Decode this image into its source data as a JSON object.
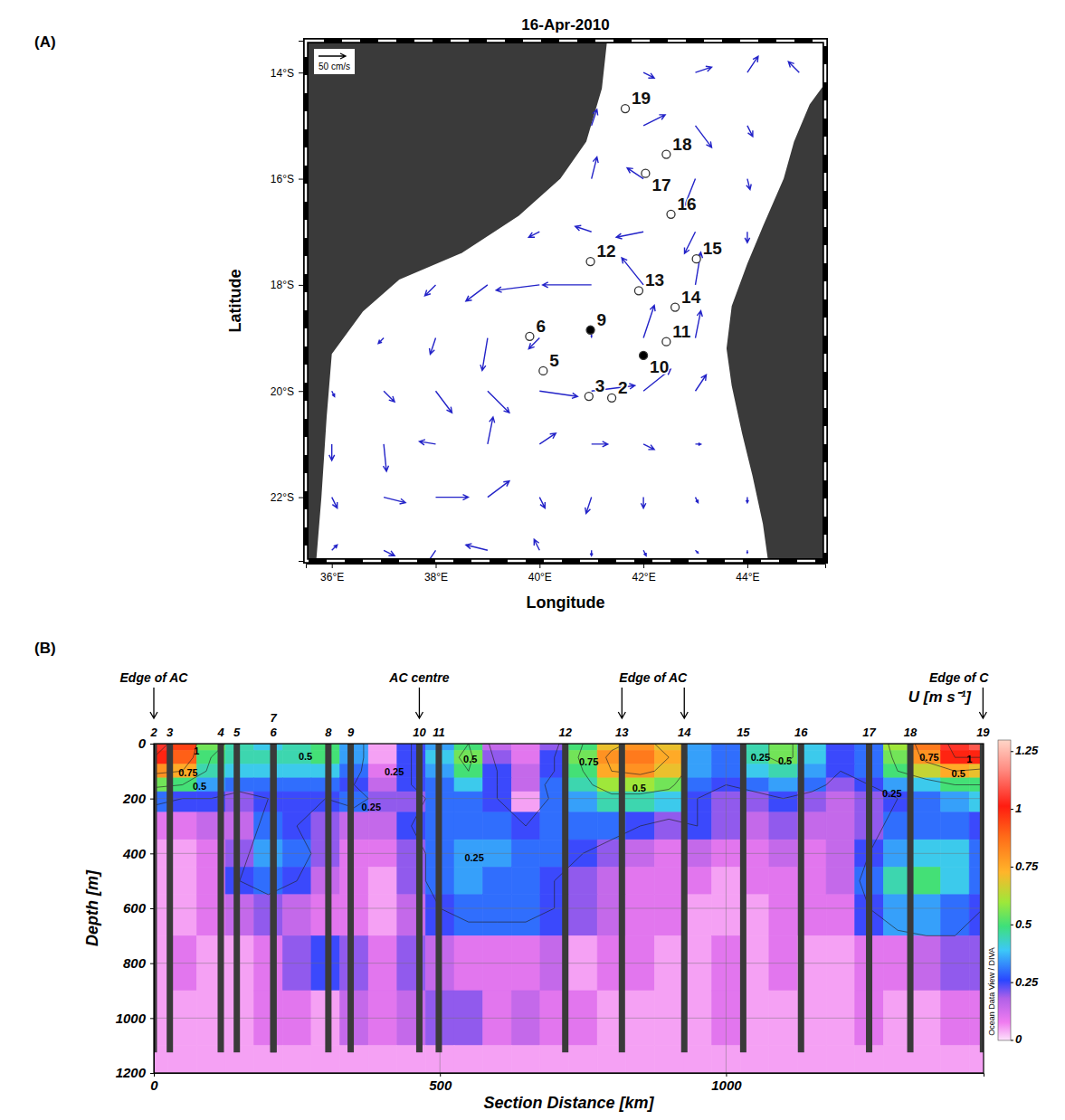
{
  "chart_data": [
    {
      "type": "vector_map",
      "panel_label": "(A)",
      "title": "16-Apr-2010",
      "x_label": "Longitude",
      "y_label": "Latitude",
      "xlim": [
        35.5,
        45.5
      ],
      "ylim": [
        -23.2,
        -13.4
      ],
      "xticks": [
        {
          "value": 36,
          "label": "36°E"
        },
        {
          "value": 38,
          "label": "38°E"
        },
        {
          "value": 40,
          "label": "40°E"
        },
        {
          "value": 42,
          "label": "42°E"
        },
        {
          "value": 44,
          "label": "44°E"
        }
      ],
      "yticks": [
        {
          "value": -14,
          "label": "14°S"
        },
        {
          "value": -16,
          "label": "16°S"
        },
        {
          "value": -18,
          "label": "18°S"
        },
        {
          "value": -20,
          "label": "20°S"
        },
        {
          "value": -22,
          "label": "22°S"
        }
      ],
      "land": [
        [
          [
            35.5,
            -13.4
          ],
          [
            41.3,
            -13.4
          ],
          [
            41.2,
            -14.3
          ],
          [
            40.9,
            -15.3
          ],
          [
            40.4,
            -16.0
          ],
          [
            39.6,
            -16.7
          ],
          [
            38.5,
            -17.4
          ],
          [
            37.3,
            -17.9
          ],
          [
            36.6,
            -18.5
          ],
          [
            36.0,
            -19.3
          ],
          [
            35.9,
            -20.5
          ],
          [
            35.8,
            -22.0
          ],
          [
            35.7,
            -23.2
          ],
          [
            35.5,
            -23.2
          ]
        ],
        [
          [
            45.5,
            -14.2
          ],
          [
            45.2,
            -14.6
          ],
          [
            44.9,
            -15.3
          ],
          [
            44.7,
            -16.0
          ],
          [
            44.3,
            -16.9
          ],
          [
            44.0,
            -17.6
          ],
          [
            43.7,
            -18.4
          ],
          [
            43.6,
            -19.2
          ],
          [
            43.7,
            -19.9
          ],
          [
            43.9,
            -20.8
          ],
          [
            44.1,
            -21.6
          ],
          [
            44.3,
            -22.5
          ],
          [
            44.4,
            -23.2
          ],
          [
            45.5,
            -23.2
          ]
        ]
      ],
      "vectors": {
        "lon": [
          36,
          37,
          38,
          39,
          40,
          41,
          42,
          43,
          44,
          45
        ],
        "lat": [
          -14,
          -15,
          -16,
          -17,
          -18,
          -19,
          -20,
          -21,
          -22,
          -23
        ],
        "u": [
          [
            null,
            null,
            null,
            null,
            null,
            null,
            20,
            30,
            20,
            -20
          ],
          [
            null,
            null,
            null,
            null,
            null,
            10,
            40,
            30,
            10,
            null
          ],
          [
            null,
            null,
            null,
            null,
            null,
            10,
            -30,
            -20,
            5,
            null
          ],
          [
            null,
            null,
            null,
            null,
            -20,
            -30,
            -50,
            -20,
            0,
            null
          ],
          [
            null,
            null,
            -20,
            -40,
            -80,
            -90,
            -40,
            10,
            null,
            null
          ],
          [
            null,
            -10,
            -10,
            -10,
            -20,
            0,
            20,
            10,
            null,
            null
          ],
          [
            5,
            20,
            30,
            40,
            70,
            80,
            50,
            20,
            null,
            null
          ],
          [
            0,
            5,
            -30,
            10,
            30,
            30,
            20,
            10,
            null,
            null
          ],
          [
            10,
            40,
            60,
            40,
            10,
            -10,
            0,
            5,
            0,
            null
          ],
          [
            10,
            20,
            -20,
            -40,
            -10,
            0,
            5,
            5,
            0,
            null
          ]
        ],
        "v": [
          [
            null,
            null,
            null,
            null,
            null,
            null,
            -10,
            10,
            30,
            20
          ],
          [
            null,
            null,
            null,
            null,
            null,
            30,
            20,
            -40,
            -20,
            null
          ],
          [
            null,
            null,
            null,
            null,
            null,
            40,
            20,
            -50,
            -20,
            null
          ],
          [
            null,
            null,
            null,
            null,
            -10,
            10,
            -10,
            -40,
            -20,
            null
          ],
          [
            null,
            null,
            -20,
            -30,
            -10,
            0,
            50,
            60,
            null,
            null
          ],
          [
            null,
            -10,
            -30,
            -60,
            -20,
            5,
            60,
            50,
            null,
            null
          ],
          [
            -10,
            -20,
            -40,
            -40,
            -10,
            10,
            40,
            30,
            null,
            null
          ],
          [
            -30,
            -50,
            5,
            50,
            20,
            0,
            -10,
            0,
            null,
            null
          ],
          [
            -20,
            -10,
            0,
            30,
            -20,
            -30,
            -20,
            -10,
            -10,
            null
          ],
          [
            10,
            -10,
            -30,
            10,
            20,
            -10,
            -10,
            -5,
            -5,
            null
          ]
        ]
      },
      "scale_arrow": {
        "value": 50,
        "label": "50 cm/s"
      },
      "series": [
        {
          "marker": "circle-open",
          "labels": [
            "2",
            "3",
            "5",
            "6",
            "11",
            "12",
            "13",
            "14",
            "15",
            "16",
            "17",
            "18",
            "19"
          ],
          "x": [
            41.39,
            40.95,
            40.07,
            39.81,
            42.44,
            40.98,
            41.91,
            42.61,
            43.02,
            42.53,
            42.04,
            42.44,
            41.65
          ],
          "y": [
            -20.13,
            -20.1,
            -19.62,
            -18.97,
            -19.07,
            -17.56,
            -18.11,
            -18.42,
            -17.51,
            -16.67,
            -15.9,
            -15.54,
            -14.68
          ]
        },
        {
          "marker": "circle-filled",
          "labels": [
            "9",
            "10"
          ],
          "x": [
            40.98,
            42.0
          ],
          "y": [
            -18.85,
            -19.33
          ]
        }
      ]
    },
    {
      "type": "section",
      "panel_label": "(B)",
      "x_label": "Section Distance [km]",
      "y_label": "Depth [m]",
      "xlim": [
        0,
        1450
      ],
      "ylim": [
        0,
        1200
      ],
      "xticks": [
        0,
        500,
        1000
      ],
      "yticks": [
        0,
        200,
        400,
        600,
        800,
        1000,
        1200
      ],
      "grid": true,
      "x": [
        0,
        50,
        100,
        150,
        200,
        250,
        300,
        350,
        400,
        450,
        500,
        550,
        600,
        650,
        700,
        750,
        800,
        850,
        900,
        950,
        1000,
        1050,
        1100,
        1150,
        1200,
        1250,
        1300,
        1350,
        1400,
        1450
      ],
      "depth": [
        0,
        50,
        100,
        150,
        200,
        300,
        400,
        500,
        600,
        800,
        1000,
        1200
      ],
      "values": [
        [
          1.05,
          0.95,
          0.55,
          0.45,
          0.4,
          0.45,
          0.5,
          0.35,
          0.05,
          0.25,
          0.35,
          0.5,
          0.15,
          0.1,
          0.2,
          0.5,
          0.7,
          0.8,
          0.7,
          0.35,
          0.3,
          0.45,
          0.55,
          0.4,
          0.25,
          0.3,
          0.6,
          0.85,
          1.05,
          1.1
        ],
        [
          1.0,
          0.9,
          0.5,
          0.45,
          0.45,
          0.45,
          0.5,
          0.35,
          0.05,
          0.25,
          0.4,
          0.55,
          0.2,
          0.1,
          0.25,
          0.55,
          0.8,
          0.85,
          0.75,
          0.35,
          0.3,
          0.45,
          0.55,
          0.4,
          0.25,
          0.3,
          0.55,
          0.8,
          1.0,
          1.0
        ],
        [
          0.8,
          0.75,
          0.45,
          0.4,
          0.4,
          0.4,
          0.4,
          0.3,
          0.1,
          0.25,
          0.35,
          0.5,
          0.25,
          0.15,
          0.25,
          0.5,
          0.75,
          0.8,
          0.7,
          0.35,
          0.3,
          0.4,
          0.45,
          0.35,
          0.25,
          0.3,
          0.5,
          0.65,
          0.75,
          0.7
        ],
        [
          0.55,
          0.5,
          0.35,
          0.3,
          0.3,
          0.3,
          0.3,
          0.25,
          0.15,
          0.25,
          0.3,
          0.4,
          0.25,
          0.15,
          0.3,
          0.45,
          0.6,
          0.6,
          0.55,
          0.3,
          0.25,
          0.3,
          0.35,
          0.3,
          0.2,
          0.25,
          0.35,
          0.4,
          0.5,
          0.5
        ],
        [
          0.3,
          0.25,
          0.25,
          0.2,
          0.25,
          0.25,
          0.25,
          0.3,
          0.2,
          0.2,
          0.3,
          0.3,
          0.25,
          0.05,
          0.3,
          0.35,
          0.45,
          0.45,
          0.4,
          0.25,
          0.2,
          0.2,
          0.25,
          0.2,
          0.15,
          0.2,
          0.25,
          0.3,
          0.35,
          0.4
        ],
        [
          0.1,
          0.1,
          0.15,
          0.15,
          0.3,
          0.25,
          0.2,
          0.15,
          0.15,
          0.25,
          0.3,
          0.3,
          0.3,
          0.25,
          0.3,
          0.3,
          0.3,
          0.25,
          0.2,
          0.25,
          0.2,
          0.15,
          0.2,
          0.15,
          0.15,
          0.2,
          0.3,
          0.3,
          0.3,
          0.25
        ],
        [
          0.05,
          0.05,
          0.1,
          0.2,
          0.35,
          0.3,
          0.2,
          0.1,
          0.1,
          0.2,
          0.3,
          0.35,
          0.35,
          0.3,
          0.3,
          0.25,
          0.2,
          0.15,
          0.1,
          0.15,
          0.1,
          0.1,
          0.15,
          0.1,
          0.15,
          0.25,
          0.35,
          0.4,
          0.4,
          0.3
        ],
        [
          0.05,
          0.05,
          0.1,
          0.25,
          0.3,
          0.25,
          0.15,
          0.1,
          0.05,
          0.2,
          0.3,
          0.35,
          0.3,
          0.3,
          0.25,
          0.2,
          0.15,
          0.1,
          0.1,
          0.1,
          0.05,
          0.1,
          0.1,
          0.1,
          0.15,
          0.3,
          0.45,
          0.5,
          0.4,
          0.3
        ],
        [
          0.05,
          0.05,
          0.1,
          0.15,
          0.2,
          0.15,
          0.1,
          0.1,
          0.05,
          0.15,
          0.25,
          0.3,
          0.3,
          0.3,
          0.25,
          0.2,
          0.15,
          0.1,
          0.1,
          0.05,
          0.05,
          0.05,
          0.1,
          0.1,
          0.1,
          0.25,
          0.35,
          0.35,
          0.3,
          0.25
        ],
        [
          0.05,
          0.1,
          0.05,
          0.05,
          0.1,
          0.2,
          0.25,
          0.2,
          0.1,
          0.2,
          0.15,
          0.1,
          0.1,
          0.1,
          0.15,
          0.05,
          0.1,
          0.1,
          0.05,
          0.05,
          0.1,
          0.05,
          0.1,
          0.05,
          0.05,
          0.1,
          0.1,
          0.15,
          0.2,
          0.2
        ],
        [
          0.05,
          0.05,
          0.05,
          0.05,
          0.1,
          0.1,
          0.05,
          0.15,
          0.1,
          0.15,
          0.2,
          0.2,
          0.1,
          0.15,
          0.1,
          0.1,
          0.05,
          0.05,
          0.05,
          0.05,
          0.1,
          0.05,
          0.05,
          0.05,
          0.05,
          0.1,
          0.05,
          0.05,
          0.1,
          0.1
        ],
        [
          0.05,
          0.05,
          0.05,
          0.05,
          0.05,
          0.05,
          0.05,
          0.05,
          0.05,
          0.05,
          0.05,
          0.05,
          0.05,
          0.05,
          0.05,
          0.05,
          0.05,
          0.05,
          0.05,
          0.05,
          0.05,
          0.05,
          0.05,
          0.05,
          0.05,
          0.05,
          0.05,
          0.05,
          0.05,
          0.05
        ]
      ],
      "colorbar": {
        "title": "U [m s⁻¹]",
        "range": [
          0,
          1.3
        ],
        "ticks": [
          0,
          0.25,
          0.5,
          0.75,
          1,
          1.25
        ]
      },
      "stations": {
        "labels": [
          "2",
          "3",
          "4",
          "5",
          "6",
          "7",
          "8",
          "9",
          "10",
          "11",
          "12",
          "13",
          "14",
          "15",
          "16",
          "17",
          "18",
          "19"
        ],
        "x": [
          0,
          28,
          117,
          145,
          209,
          209,
          305,
          344,
          464,
          498,
          719,
          818,
          927,
          1030,
          1131,
          1250,
          1322,
          1449
        ],
        "bottom": [
          1125,
          1125,
          1125,
          1125,
          1125,
          1125,
          1125,
          1125,
          1125,
          1125,
          1125,
          1125,
          1125,
          1125,
          1125,
          1125,
          1125,
          1125
        ]
      },
      "annotations": [
        {
          "text": "Edge of AC",
          "x": [
            0
          ]
        },
        {
          "text": "AC centre",
          "x": [
            464
          ]
        },
        {
          "text": "Edge of AC",
          "x": [
            818,
            927
          ]
        },
        {
          "text": "Edge of C",
          "x": [
            1449
          ]
        }
      ],
      "contour_labels": [
        {
          "value": 1,
          "x": 75,
          "depth": 30
        },
        {
          "value": 0.75,
          "x": 60,
          "depth": 110
        },
        {
          "value": 0.5,
          "x": 80,
          "depth": 160
        },
        {
          "value": 0.5,
          "x": 265,
          "depth": 50
        },
        {
          "value": 0.25,
          "x": 420,
          "depth": 105
        },
        {
          "value": 0.25,
          "x": 380,
          "depth": 235
        },
        {
          "value": 0.25,
          "x": 560,
          "depth": 420
        },
        {
          "value": 0.5,
          "x": 553,
          "depth": 60
        },
        {
          "value": 0.75,
          "x": 760,
          "depth": 70
        },
        {
          "value": 0.5,
          "x": 848,
          "depth": 165
        },
        {
          "value": 0.25,
          "x": 1060,
          "depth": 52
        },
        {
          "value": 0.5,
          "x": 1103,
          "depth": 66
        },
        {
          "value": 0.25,
          "x": 1290,
          "depth": 185
        },
        {
          "value": 0.75,
          "x": 1355,
          "depth": 52
        },
        {
          "value": 0.5,
          "x": 1406,
          "depth": 112
        },
        {
          "value": 1,
          "x": 1425,
          "depth": 60
        }
      ],
      "credit": "Ocean Data View / DIVA"
    }
  ]
}
